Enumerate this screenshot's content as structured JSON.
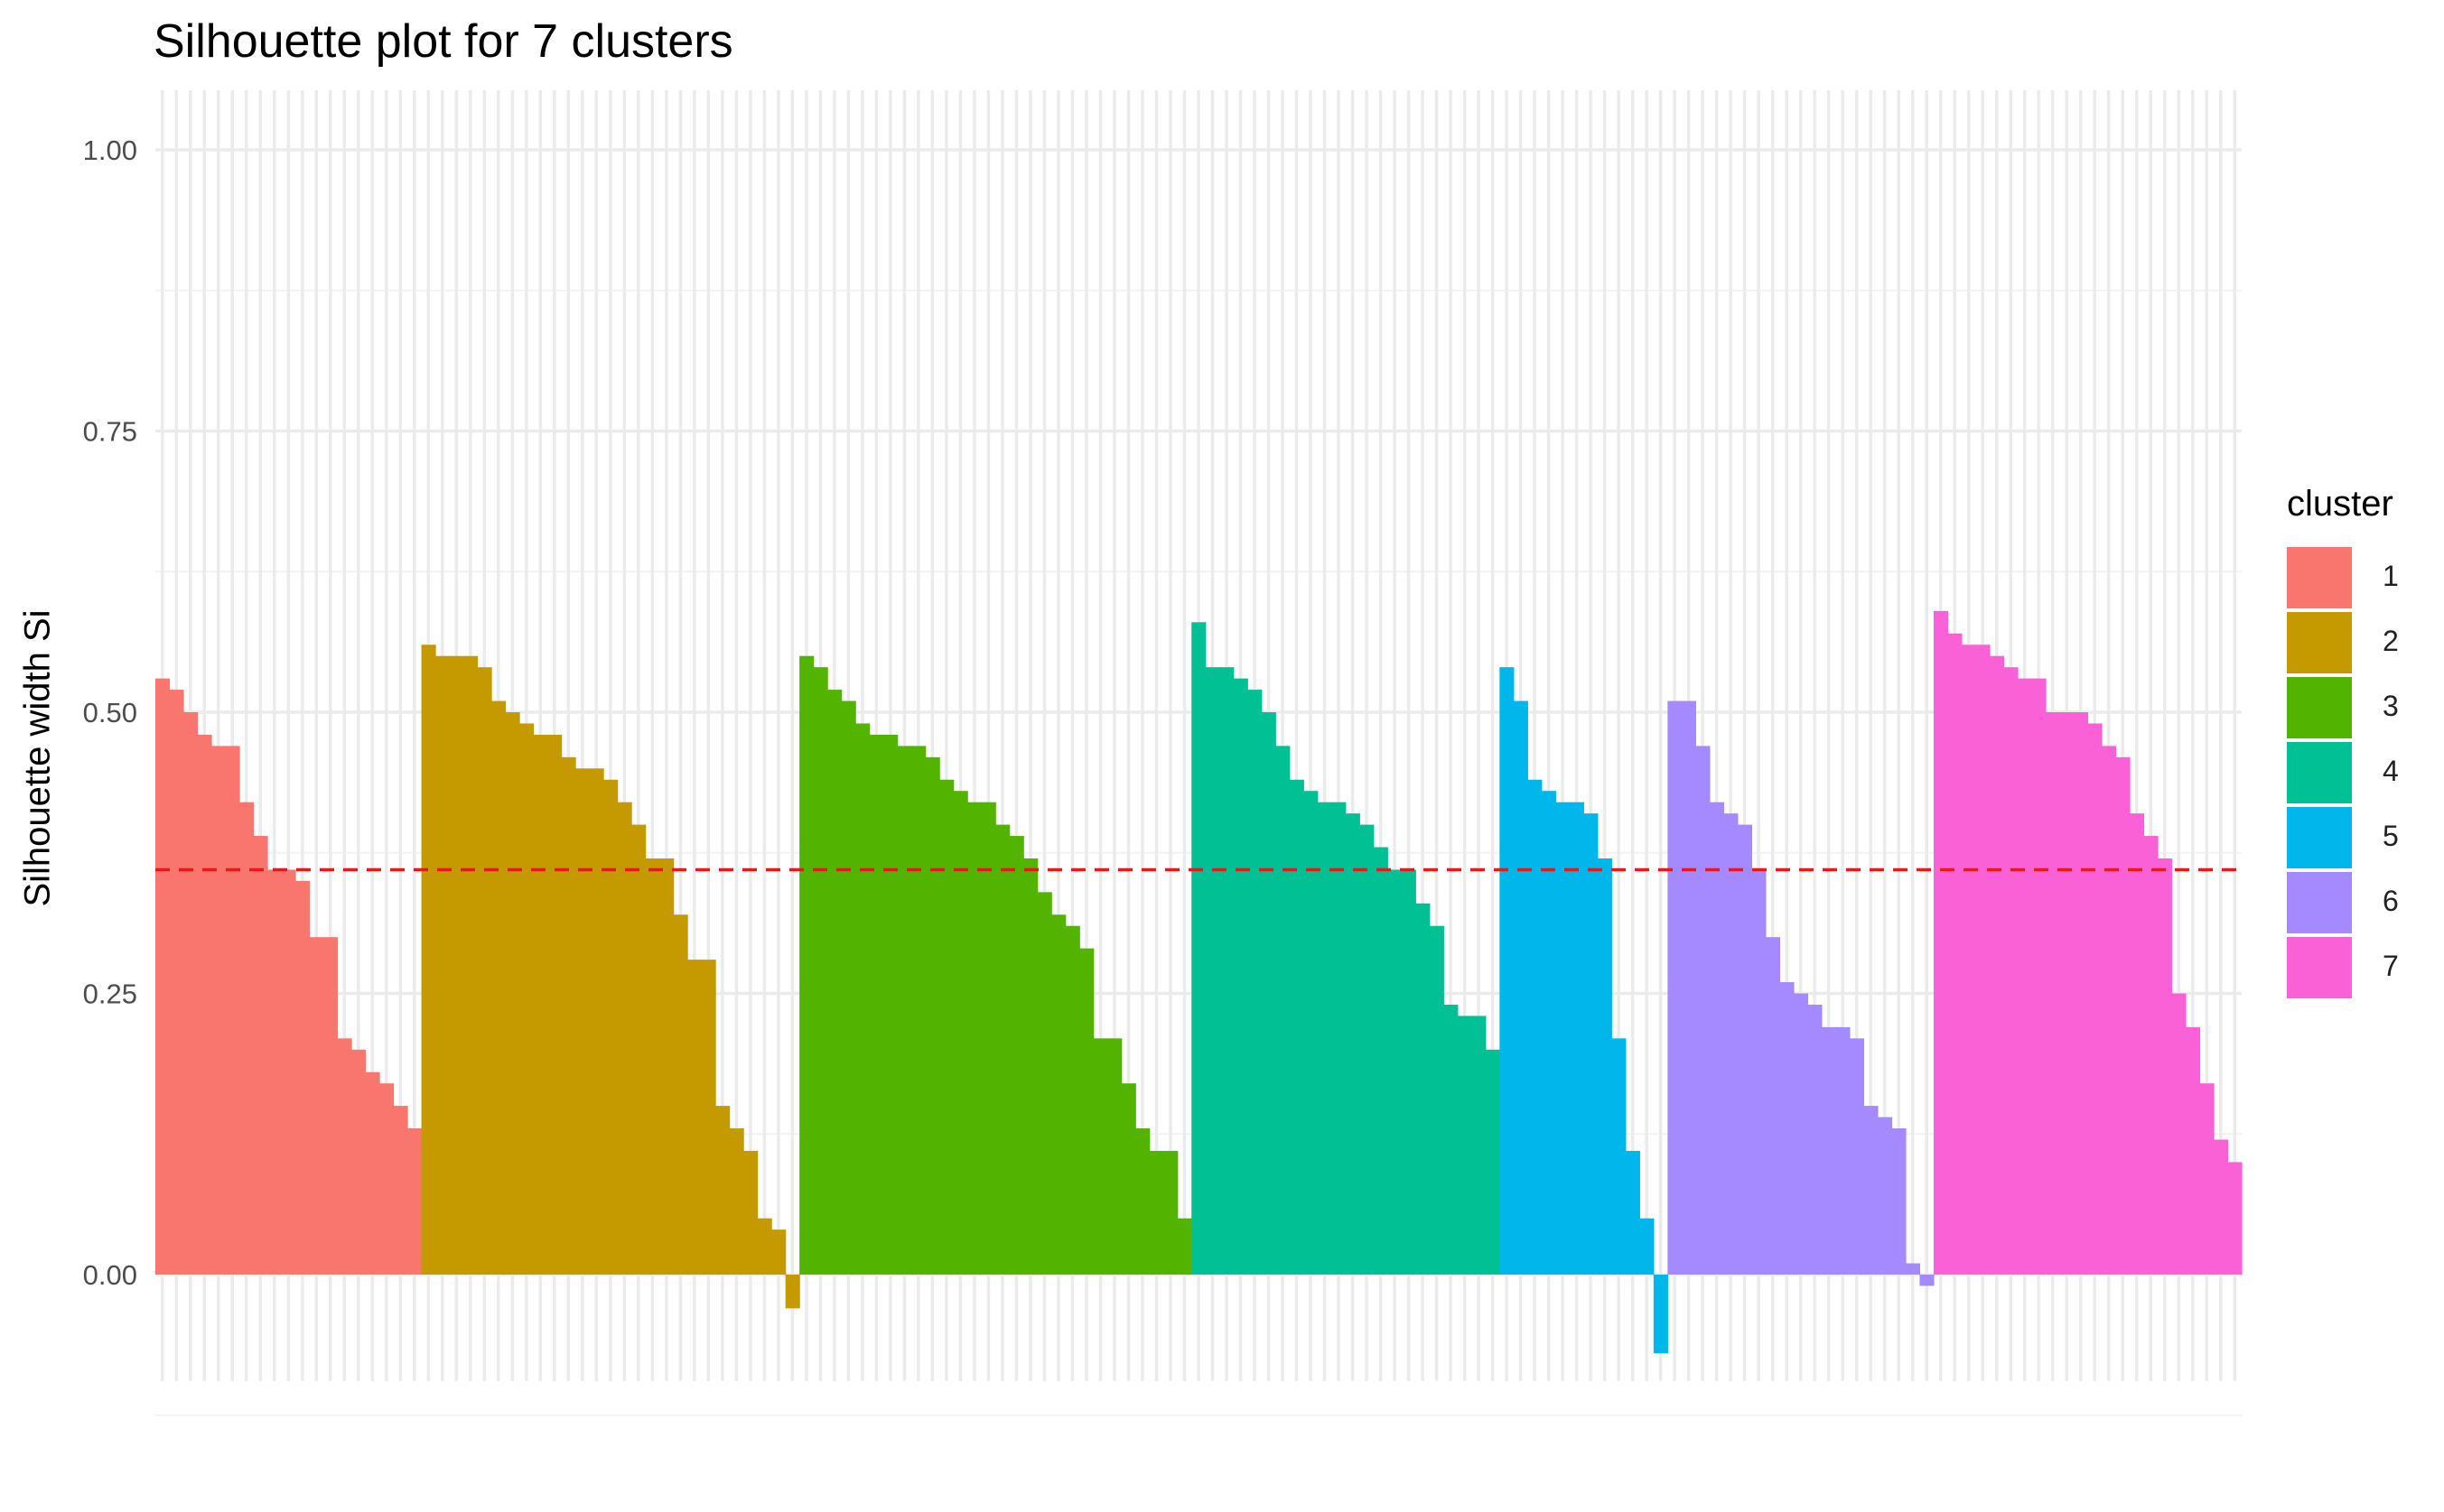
{
  "chart_data": {
    "type": "bar",
    "title": "Silhouette plot for 7 clusters",
    "subtitle": "",
    "xlabel": "",
    "ylabel": "Silhouette width Si",
    "ylim": [
      -0.1,
      1.05
    ],
    "yticks": [
      0.0,
      0.25,
      0.5,
      0.75,
      1.0
    ],
    "ytick_labels": [
      "0.00",
      "0.25",
      "0.50",
      "0.75",
      "1.00"
    ],
    "average_line": 0.36,
    "average_line_color": "#e41a1c",
    "grid": true,
    "legend_title": "cluster",
    "legend_position": "right",
    "series": [
      {
        "name": "1",
        "color": "#F8766D",
        "values": [
          0.53,
          0.52,
          0.5,
          0.48,
          0.47,
          0.47,
          0.42,
          0.39,
          0.36,
          0.36,
          0.35,
          0.3,
          0.3,
          0.21,
          0.2,
          0.18,
          0.17,
          0.15,
          0.13
        ]
      },
      {
        "name": "2",
        "color": "#C49A00",
        "values": [
          0.56,
          0.55,
          0.55,
          0.55,
          0.54,
          0.51,
          0.5,
          0.49,
          0.48,
          0.48,
          0.46,
          0.45,
          0.45,
          0.44,
          0.42,
          0.4,
          0.37,
          0.37,
          0.32,
          0.28,
          0.28,
          0.15,
          0.13,
          0.11,
          0.05,
          0.04,
          -0.03
        ]
      },
      {
        "name": "3",
        "color": "#53B400",
        "values": [
          0.55,
          0.54,
          0.52,
          0.51,
          0.49,
          0.48,
          0.48,
          0.47,
          0.47,
          0.46,
          0.44,
          0.43,
          0.42,
          0.42,
          0.4,
          0.39,
          0.37,
          0.34,
          0.32,
          0.31,
          0.29,
          0.21,
          0.21,
          0.17,
          0.13,
          0.11,
          0.11,
          0.05
        ]
      },
      {
        "name": "4",
        "color": "#00C094",
        "values": [
          0.58,
          0.54,
          0.54,
          0.53,
          0.52,
          0.5,
          0.47,
          0.44,
          0.43,
          0.42,
          0.42,
          0.41,
          0.4,
          0.38,
          0.36,
          0.36,
          0.33,
          0.31,
          0.24,
          0.23,
          0.23,
          0.2
        ]
      },
      {
        "name": "5",
        "color": "#00B6EB",
        "values": [
          0.54,
          0.51,
          0.44,
          0.43,
          0.42,
          0.42,
          0.41,
          0.37,
          0.21,
          0.11,
          0.05,
          -0.07
        ]
      },
      {
        "name": "6",
        "color": "#A58AFF",
        "values": [
          0.51,
          0.51,
          0.47,
          0.42,
          0.41,
          0.4,
          0.36,
          0.3,
          0.26,
          0.25,
          0.24,
          0.22,
          0.22,
          0.21,
          0.15,
          0.14,
          0.13,
          0.01,
          -0.01
        ]
      },
      {
        "name": "7",
        "color": "#FB61D7",
        "values": [
          0.59,
          0.57,
          0.56,
          0.56,
          0.55,
          0.54,
          0.53,
          0.53,
          0.5,
          0.5,
          0.5,
          0.49,
          0.47,
          0.46,
          0.41,
          0.39,
          0.37,
          0.25,
          0.22,
          0.17,
          0.12,
          0.1
        ]
      }
    ]
  }
}
